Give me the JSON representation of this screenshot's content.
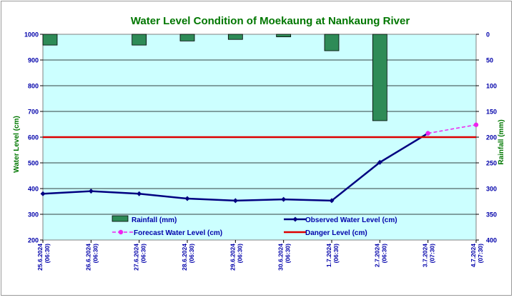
{
  "chart_data": {
    "type": "line",
    "title": "Water Level Condition of Moekaung at Nankaung River",
    "ylabel": "Water Level (cm)",
    "y2label": "Rainfall (mm)",
    "ylim": [
      200,
      1000
    ],
    "y2lim": [
      0,
      400
    ],
    "y2_inverted": true,
    "yticks": [
      200,
      300,
      400,
      500,
      600,
      700,
      800,
      900,
      1000
    ],
    "y2ticks": [
      0,
      50,
      100,
      150,
      200,
      250,
      300,
      350,
      400
    ],
    "categories": [
      [
        "25.6.2024",
        "(06:30)"
      ],
      [
        "26.6.2024",
        "(06:30)"
      ],
      [
        "27.6.2024",
        "(06:30)"
      ],
      [
        "28.6.2024",
        "(06:30)"
      ],
      [
        "29.6.2024",
        "(06:30)"
      ],
      [
        "30.6.2024",
        "(06:30)"
      ],
      [
        "1.7.2024",
        "(06:30)"
      ],
      [
        "2.7.2024",
        "(06:30)"
      ],
      [
        "3.7.2024",
        "(07:30)"
      ],
      [
        "4.7.2024",
        "(07:30)"
      ]
    ],
    "series": [
      {
        "name": "Rainfall (mm)",
        "kind": "bar",
        "axis": "right",
        "color": "#2e8b57",
        "values": [
          21,
          null,
          21,
          13,
          10,
          5,
          32,
          168,
          null,
          null
        ]
      },
      {
        "name": "Observed Water Level (cm)",
        "kind": "line",
        "axis": "left",
        "color": "#000080",
        "values": [
          380,
          390,
          380,
          361,
          353,
          358,
          353,
          502,
          615,
          null
        ]
      },
      {
        "name": "Forecast Water Level (cm)",
        "kind": "line",
        "axis": "left",
        "color": "#ee22ee",
        "dashed": true,
        "values": [
          null,
          null,
          null,
          null,
          null,
          null,
          null,
          null,
          615,
          648
        ]
      },
      {
        "name": "Danger Level (cm)",
        "kind": "line",
        "axis": "left",
        "color": "#dd0000",
        "values": [
          600,
          600,
          600,
          600,
          600,
          600,
          600,
          600,
          600,
          600
        ]
      }
    ],
    "legend_position": "bottom-inside",
    "grid": true,
    "plot_background": "#ccffff",
    "title_color": "#007700",
    "tick_color": "#0000aa"
  }
}
